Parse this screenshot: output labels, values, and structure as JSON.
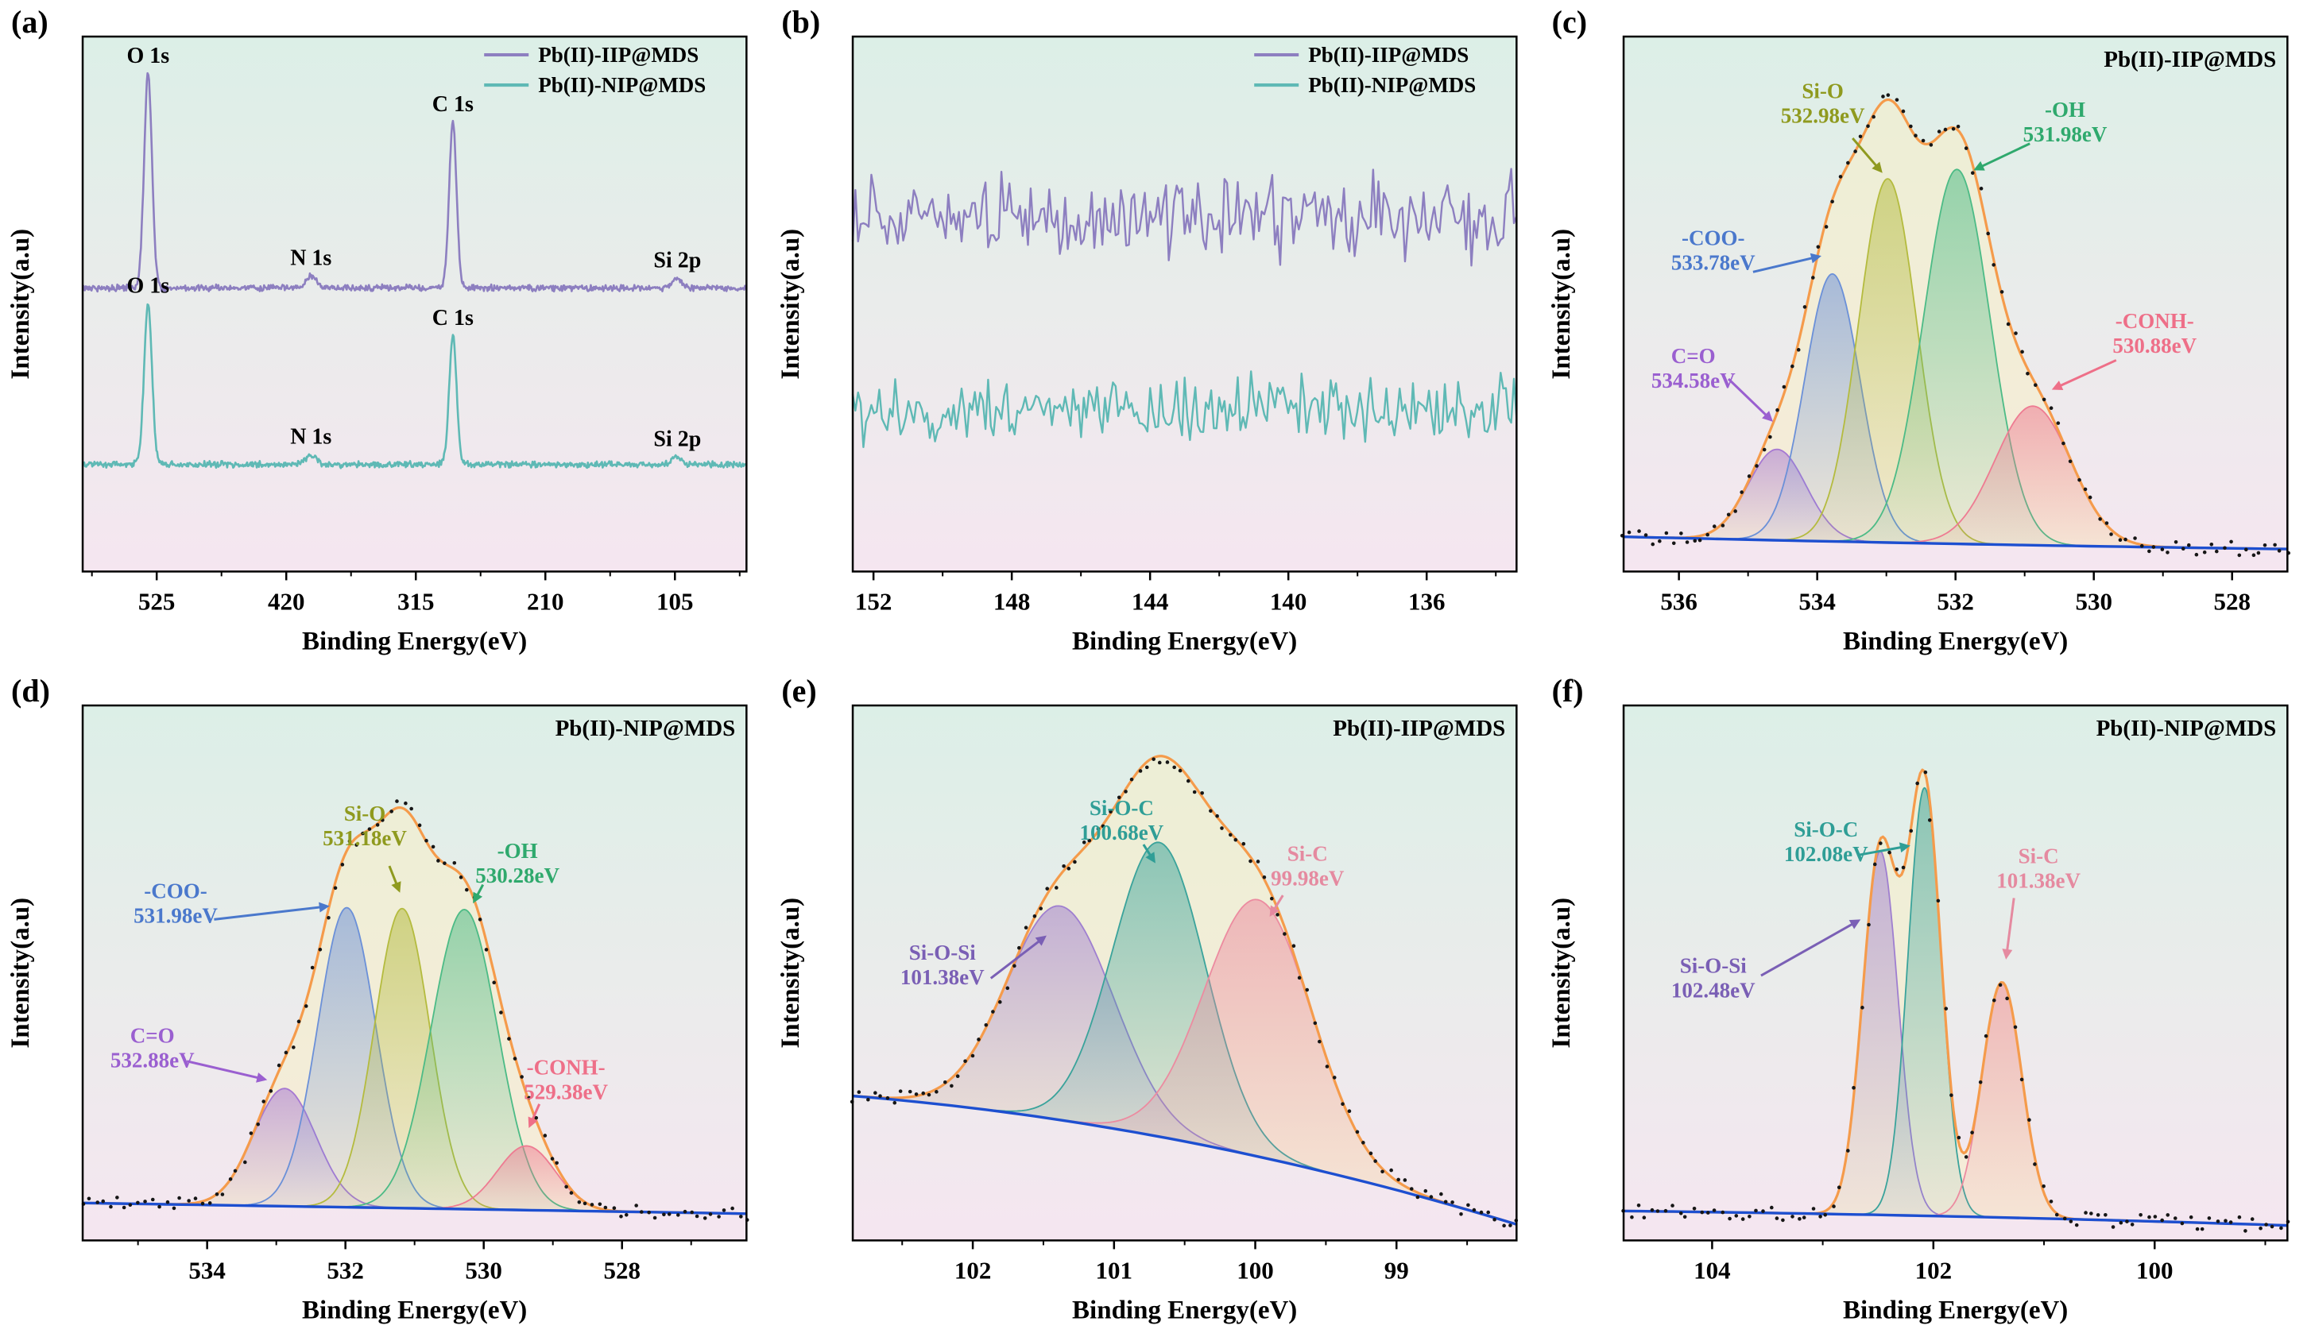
{
  "chart_data": [
    {
      "id": "a",
      "panel_label": "(a)",
      "type": "line",
      "kind": "survey",
      "title": "",
      "xlabel": "Binding Energy(eV)",
      "ylabel": "Intensity(a.u)",
      "xlim": [
        585,
        47
      ],
      "x_ticks": [
        525,
        420,
        315,
        210,
        105
      ],
      "legend": [
        {
          "label": "Pb(II)-IIP@MDS",
          "color": "#8d7fc0"
        },
        {
          "label": "Pb(II)-NIP@MDS",
          "color": "#5fb9b5"
        }
      ],
      "series": [
        {
          "name": "Pb(II)-IIP@MDS",
          "color": "#8d7fc0",
          "baseline": 0.53,
          "peaks": [
            {
              "label": "O 1s",
              "center": 532,
              "height": 0.4,
              "sigma": 3.2
            },
            {
              "label": "N 1s",
              "center": 400,
              "height": 0.022,
              "sigma": 4
            },
            {
              "label": "C 1s",
              "center": 285,
              "height": 0.31,
              "sigma": 3
            },
            {
              "label": "Si 2p",
              "center": 103,
              "height": 0.018,
              "sigma": 4
            }
          ]
        },
        {
          "name": "Pb(II)-NIP@MDS",
          "color": "#5fb9b5",
          "baseline": 0.2,
          "peaks": [
            {
              "label": "O 1s",
              "center": 532,
              "height": 0.3,
              "sigma": 3.2
            },
            {
              "label": "N 1s",
              "center": 400,
              "height": 0.018,
              "sigma": 4
            },
            {
              "label": "C 1s",
              "center": 285,
              "height": 0.24,
              "sigma": 3
            },
            {
              "label": "Si 2p",
              "center": 103,
              "height": 0.014,
              "sigma": 4
            }
          ]
        }
      ]
    },
    {
      "id": "b",
      "panel_label": "(b)",
      "type": "line",
      "kind": "noise",
      "title": "",
      "xlabel": "Binding Energy(eV)",
      "ylabel": "Intensity(a.u)",
      "xlim": [
        152.6,
        133.4
      ],
      "x_ticks": [
        152,
        148,
        144,
        140,
        136
      ],
      "legend": [
        {
          "label": "Pb(II)-IIP@MDS",
          "color": "#8d7fc0"
        },
        {
          "label": "Pb(II)-NIP@MDS",
          "color": "#5fb9b5"
        }
      ],
      "series": [
        {
          "name": "Pb(II)-IIP@MDS",
          "color": "#8d7fc0",
          "offset": 0.66,
          "amplitude": 0.11
        },
        {
          "name": "Pb(II)-NIP@MDS",
          "color": "#5fb9b5",
          "offset": 0.3,
          "amplitude": 0.09
        }
      ]
    },
    {
      "id": "c",
      "panel_label": "(c)",
      "type": "area",
      "kind": "fitted",
      "title": "Pb(II)-IIP@MDS",
      "xlabel": "Binding Energy(eV)",
      "ylabel": "Intensity(a.u)",
      "xlim": [
        536.8,
        527.2
      ],
      "x_ticks": [
        536,
        534,
        532,
        530,
        528
      ],
      "envelope_color": "#f59b4b",
      "baseline_color": "#1d4fd0",
      "dot_color": "#161616",
      "baseline": {
        "left": 0.065,
        "mid": 0.05,
        "right": 0.042
      },
      "components": [
        {
          "label": "C=O",
          "energy_label": "534.58eV",
          "center": 534.58,
          "height": 0.17,
          "sigma": 0.42,
          "color": "#a678d2"
        },
        {
          "label": "-COO-",
          "energy_label": "533.78eV",
          "center": 533.78,
          "height": 0.5,
          "sigma": 0.4,
          "color": "#6b90d8"
        },
        {
          "label": "Si-O",
          "energy_label": "532.98eV",
          "center": 532.98,
          "height": 0.68,
          "sigma": 0.42,
          "color": "#b4bb3e"
        },
        {
          "label": "-OH",
          "energy_label": "531.98eV",
          "center": 531.98,
          "height": 0.7,
          "sigma": 0.48,
          "color": "#4cbb86"
        },
        {
          "label": "-CONH-",
          "energy_label": "530.88eV",
          "center": 530.88,
          "height": 0.26,
          "sigma": 0.55,
          "color": "#ee7b92"
        }
      ],
      "annotations": [
        {
          "label": "Si-O",
          "energy_label": "532.98eV",
          "color": "#8f9a1f",
          "tx": 0.3,
          "ty": 0.115,
          "arrow": [
            0.345,
            0.19,
            0.39,
            0.255
          ]
        },
        {
          "label": "-OH",
          "energy_label": "531.98eV",
          "color": "#2fa96d",
          "tx": 0.665,
          "ty": 0.15,
          "arrow": [
            0.612,
            0.2,
            0.527,
            0.25
          ]
        },
        {
          "label": "-COO-",
          "energy_label": "533.78eV",
          "color": "#4a78cc",
          "tx": 0.135,
          "ty": 0.39,
          "arrow": [
            0.195,
            0.44,
            0.298,
            0.41
          ]
        },
        {
          "label": "C=O",
          "energy_label": "534.58eV",
          "color": "#9a5fd0",
          "tx": 0.105,
          "ty": 0.61,
          "arrow": [
            0.158,
            0.64,
            0.225,
            0.72
          ]
        },
        {
          "label": "-CONH-",
          "energy_label": "530.88eV",
          "color": "#ee6f88",
          "tx": 0.8,
          "ty": 0.545,
          "arrow": [
            0.742,
            0.605,
            0.645,
            0.66
          ]
        }
      ]
    },
    {
      "id": "d",
      "panel_label": "(d)",
      "type": "area",
      "kind": "fitted",
      "title": "Pb(II)-NIP@MDS",
      "xlabel": "Binding Energy(eV)",
      "ylabel": "Intensity(a.u)",
      "xlim": [
        535.8,
        526.2
      ],
      "x_ticks": [
        534,
        532,
        530,
        528
      ],
      "envelope_color": "#f59b4b",
      "baseline_color": "#1d4fd0",
      "dot_color": "#161616",
      "baseline": {
        "left": 0.07,
        "mid": 0.06,
        "right": 0.05
      },
      "components": [
        {
          "label": "C=O",
          "energy_label": "532.88eV",
          "center": 532.88,
          "height": 0.22,
          "sigma": 0.45,
          "color": "#a678d2"
        },
        {
          "label": "-COO-",
          "energy_label": "531.98eV",
          "center": 531.98,
          "height": 0.56,
          "sigma": 0.42,
          "color": "#6b90d8"
        },
        {
          "label": "Si-O",
          "energy_label": "531.18eV",
          "center": 531.18,
          "height": 0.56,
          "sigma": 0.4,
          "color": "#b4bb3e"
        },
        {
          "label": "-OH",
          "energy_label": "530.28eV",
          "center": 530.28,
          "height": 0.56,
          "sigma": 0.48,
          "color": "#4cbb86"
        },
        {
          "label": "-CONH-",
          "energy_label": "529.38eV",
          "center": 529.38,
          "height": 0.12,
          "sigma": 0.42,
          "color": "#ee7b92"
        }
      ],
      "annotations": [
        {
          "label": "Si-O",
          "energy_label": "531.18eV",
          "color": "#8f9a1f",
          "tx": 0.425,
          "ty": 0.215,
          "arrow": [
            0.462,
            0.3,
            0.478,
            0.35
          ]
        },
        {
          "label": "-OH",
          "energy_label": "530.28eV",
          "color": "#2fa96d",
          "tx": 0.655,
          "ty": 0.285,
          "arrow": [
            0.603,
            0.335,
            0.588,
            0.37
          ]
        },
        {
          "label": "-COO-",
          "energy_label": "531.98eV",
          "color": "#4a78cc",
          "tx": 0.14,
          "ty": 0.36,
          "arrow": [
            0.198,
            0.4,
            0.372,
            0.375
          ]
        },
        {
          "label": "C=O",
          "energy_label": "532.88eV",
          "color": "#9a5fd0",
          "tx": 0.105,
          "ty": 0.63,
          "arrow": [
            0.157,
            0.665,
            0.278,
            0.7
          ]
        },
        {
          "label": "-CONH-",
          "energy_label": "529.38eV",
          "color": "#ee6f88",
          "tx": 0.728,
          "ty": 0.69,
          "arrow": [
            0.688,
            0.745,
            0.672,
            0.79
          ]
        }
      ]
    },
    {
      "id": "e",
      "panel_label": "(e)",
      "type": "area",
      "kind": "fitted",
      "title": "Pb(II)-IIP@MDS",
      "xlabel": "Binding Energy(eV)",
      "ylabel": "Intensity(a.u)",
      "xlim": [
        102.85,
        98.15
      ],
      "x_ticks": [
        102,
        101,
        100,
        99
      ],
      "envelope_color": "#f59b4b",
      "baseline_color": "#1d4fd0",
      "dot_color": "#161616",
      "baseline": {
        "left": 0.27,
        "mid": 0.22,
        "right": 0.03
      },
      "components": [
        {
          "label": "Si-O-Si",
          "energy_label": "101.38eV",
          "center": 101.38,
          "height": 0.4,
          "sigma": 0.38,
          "color": "#9f7fd0"
        },
        {
          "label": "Si-O-C",
          "energy_label": "100.68eV",
          "center": 100.68,
          "height": 0.55,
          "sigma": 0.33,
          "color": "#3aa39b"
        },
        {
          "label": "Si-C",
          "energy_label": "99.98eV",
          "center": 99.98,
          "height": 0.48,
          "sigma": 0.38,
          "color": "#ec8ba0"
        }
      ],
      "annotations": [
        {
          "label": "Si-O-C",
          "energy_label": "100.68eV",
          "color": "#2f9e96",
          "tx": 0.405,
          "ty": 0.205,
          "arrow": [
            0.438,
            0.26,
            0.456,
            0.295
          ]
        },
        {
          "label": "Si-O-Si",
          "energy_label": "101.38eV",
          "color": "#7a5fb5",
          "tx": 0.135,
          "ty": 0.475,
          "arrow": [
            0.208,
            0.51,
            0.292,
            0.43
          ]
        },
        {
          "label": "Si-C",
          "energy_label": "99.98eV",
          "color": "#e58aa0",
          "tx": 0.685,
          "ty": 0.29,
          "arrow": [
            0.648,
            0.355,
            0.628,
            0.395
          ]
        }
      ]
    },
    {
      "id": "f",
      "panel_label": "(f)",
      "type": "area",
      "kind": "fitted",
      "title": "Pb(II)-NIP@MDS",
      "xlabel": "Binding Energy(eV)",
      "ylabel": "Intensity(a.u)",
      "xlim": [
        104.8,
        98.8
      ],
      "x_ticks": [
        104,
        102,
        100
      ],
      "envelope_color": "#f59b4b",
      "baseline_color": "#1d4fd0",
      "dot_color": "#161616",
      "baseline": {
        "left": 0.055,
        "mid": 0.048,
        "right": 0.028
      },
      "components": [
        {
          "label": "Si-O-Si",
          "energy_label": "102.48eV",
          "center": 102.48,
          "height": 0.68,
          "sigma": 0.16,
          "color": "#9f7fd0"
        },
        {
          "label": "Si-O-C",
          "energy_label": "102.08eV",
          "center": 102.08,
          "height": 0.8,
          "sigma": 0.15,
          "color": "#3aa39b"
        },
        {
          "label": "Si-C",
          "energy_label": "101.38eV",
          "center": 101.38,
          "height": 0.44,
          "sigma": 0.18,
          "color": "#ec8ba0"
        }
      ],
      "annotations": [
        {
          "label": "Si-O-C",
          "energy_label": "102.08eV",
          "color": "#2f9e96",
          "tx": 0.305,
          "ty": 0.245,
          "arrow": [
            0.352,
            0.28,
            0.432,
            0.262
          ]
        },
        {
          "label": "Si-O-Si",
          "energy_label": "102.48eV",
          "color": "#7a5fb5",
          "tx": 0.135,
          "ty": 0.5,
          "arrow": [
            0.207,
            0.505,
            0.357,
            0.4
          ]
        },
        {
          "label": "Si-C",
          "energy_label": "101.38eV",
          "color": "#e58aa0",
          "tx": 0.625,
          "ty": 0.295,
          "arrow": [
            0.588,
            0.36,
            0.576,
            0.475
          ]
        }
      ]
    }
  ]
}
